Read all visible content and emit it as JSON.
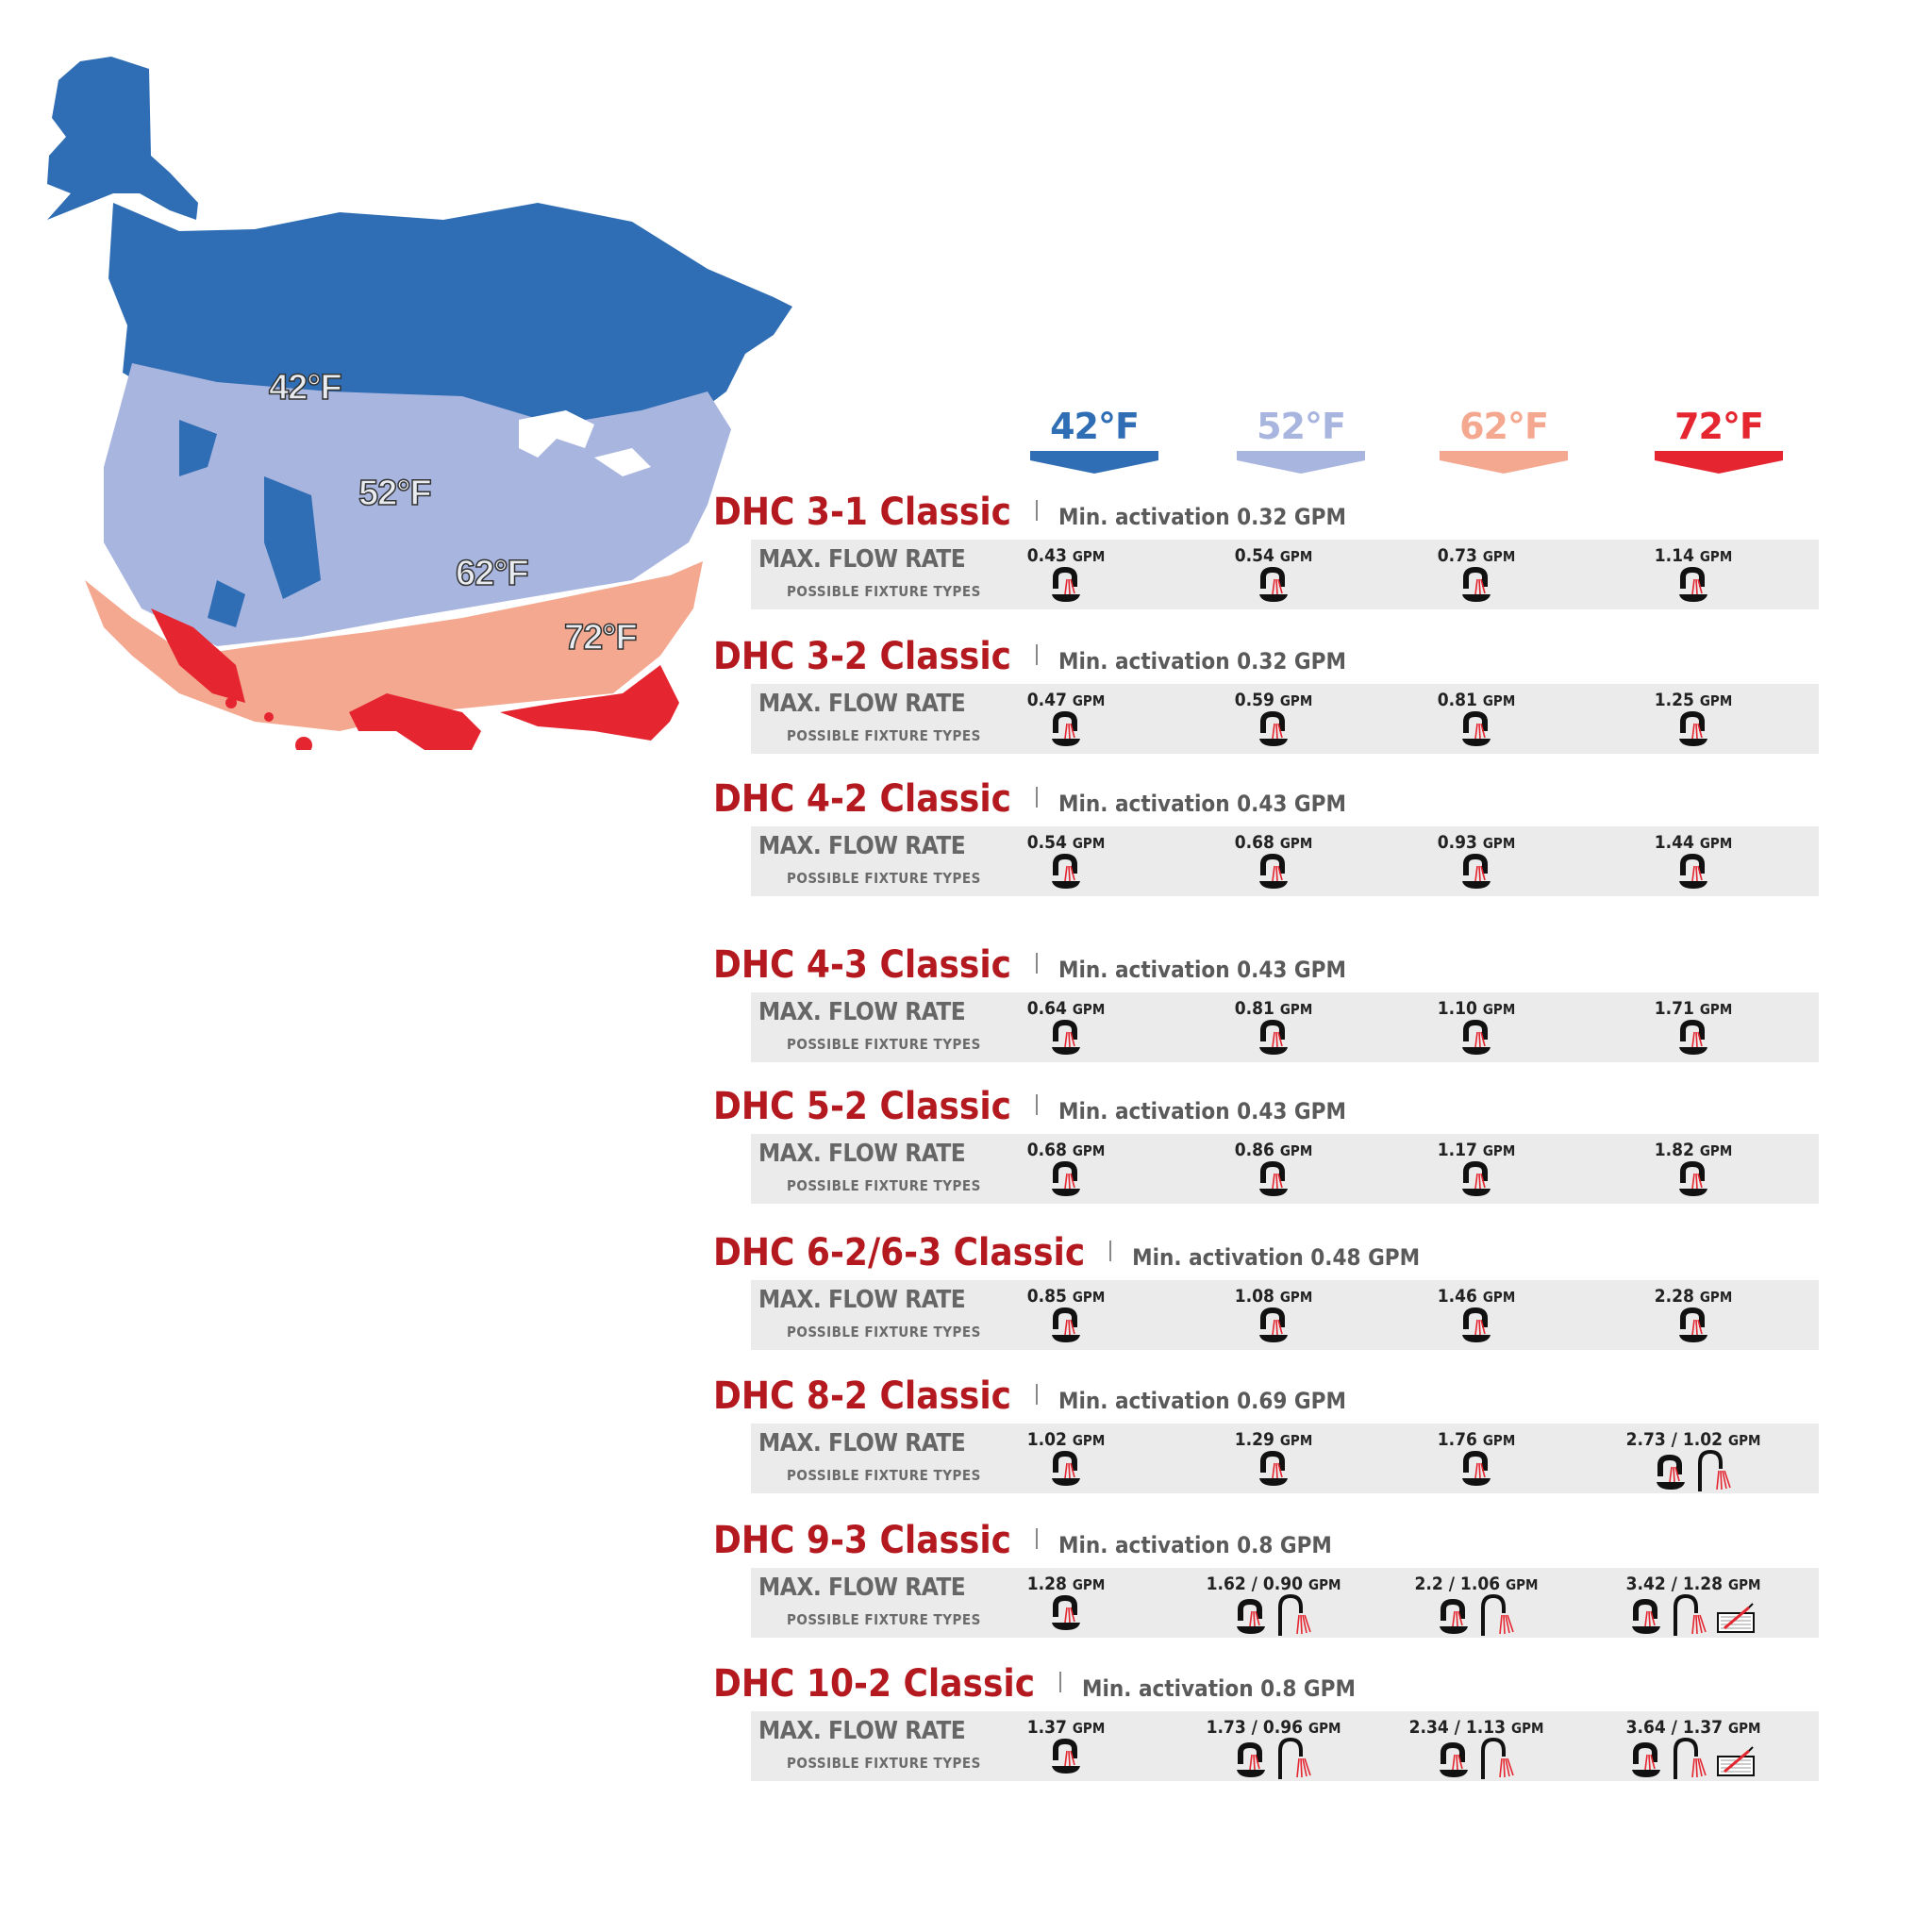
{
  "map": {
    "regions": [
      {
        "name": "42",
        "label": "42°F",
        "color": "#2f6db4"
      },
      {
        "name": "52",
        "label": "52°F",
        "color": "#a8b5df"
      },
      {
        "name": "62",
        "label": "62°F",
        "color": "#f4a88f"
      },
      {
        "name": "72",
        "label": "72°F",
        "color": "#e5252f"
      }
    ]
  },
  "temps": [
    {
      "label": "42°F",
      "color": "#2f6db4"
    },
    {
      "label": "52°F",
      "color": "#a8b5df"
    },
    {
      "label": "62°F",
      "color": "#f4a88f"
    },
    {
      "label": "72°F",
      "color": "#e5252f"
    }
  ],
  "labels": {
    "max_flow": "MAX. FLOW RATE",
    "fixture_types": "POSSIBLE FIXTURE TYPES"
  },
  "models": [
    {
      "name": "DHC 3-1 Classic",
      "activation": "Min. activation 0.32 GPM",
      "flows": [
        {
          "value": "0.43",
          "unit": "GPM",
          "icons": [
            "faucet-icon"
          ]
        },
        {
          "value": "0.54",
          "unit": "GPM",
          "icons": [
            "faucet-icon"
          ]
        },
        {
          "value": "0.73",
          "unit": "GPM",
          "icons": [
            "faucet-icon"
          ]
        },
        {
          "value": "1.14",
          "unit": "GPM",
          "icons": [
            "faucet-icon"
          ]
        }
      ]
    },
    {
      "name": "DHC 3-2 Classic",
      "activation": "Min. activation 0.32 GPM",
      "flows": [
        {
          "value": "0.47",
          "unit": "GPM",
          "icons": [
            "faucet-icon"
          ]
        },
        {
          "value": "0.59",
          "unit": "GPM",
          "icons": [
            "faucet-icon"
          ]
        },
        {
          "value": "0.81",
          "unit": "GPM",
          "icons": [
            "faucet-icon"
          ]
        },
        {
          "value": "1.25",
          "unit": "GPM",
          "icons": [
            "faucet-icon"
          ]
        }
      ]
    },
    {
      "name": "DHC 4-2 Classic",
      "activation": "Min. activation 0.43 GPM",
      "flows": [
        {
          "value": "0.54",
          "unit": "GPM",
          "icons": [
            "faucet-icon"
          ]
        },
        {
          "value": "0.68",
          "unit": "GPM",
          "icons": [
            "faucet-icon"
          ]
        },
        {
          "value": "0.93",
          "unit": "GPM",
          "icons": [
            "faucet-icon"
          ]
        },
        {
          "value": "1.44",
          "unit": "GPM",
          "icons": [
            "faucet-icon"
          ]
        }
      ]
    },
    {
      "name": "DHC 4-3 Classic",
      "activation": "Min. activation 0.43 GPM",
      "flows": [
        {
          "value": "0.64",
          "unit": "GPM",
          "icons": [
            "faucet-icon"
          ]
        },
        {
          "value": "0.81",
          "unit": "GPM",
          "icons": [
            "faucet-icon"
          ]
        },
        {
          "value": "1.10",
          "unit": "GPM",
          "icons": [
            "faucet-icon"
          ]
        },
        {
          "value": "1.71",
          "unit": "GPM",
          "icons": [
            "faucet-icon"
          ]
        }
      ]
    },
    {
      "name": "DHC 5-2 Classic",
      "activation": "Min. activation 0.43 GPM",
      "flows": [
        {
          "value": "0.68",
          "unit": "GPM",
          "icons": [
            "faucet-icon"
          ]
        },
        {
          "value": "0.86",
          "unit": "GPM",
          "icons": [
            "faucet-icon"
          ]
        },
        {
          "value": "1.17",
          "unit": "GPM",
          "icons": [
            "faucet-icon"
          ]
        },
        {
          "value": "1.82",
          "unit": "GPM",
          "icons": [
            "faucet-icon"
          ]
        }
      ]
    },
    {
      "name": "DHC 6-2/6-3 Classic",
      "activation": "Min. activation 0.48 GPM",
      "flows": [
        {
          "value": "0.85",
          "unit": "GPM",
          "icons": [
            "faucet-icon"
          ]
        },
        {
          "value": "1.08",
          "unit": "GPM",
          "icons": [
            "faucet-icon"
          ]
        },
        {
          "value": "1.46",
          "unit": "GPM",
          "icons": [
            "faucet-icon"
          ]
        },
        {
          "value": "2.28",
          "unit": "GPM",
          "icons": [
            "faucet-icon"
          ]
        }
      ]
    },
    {
      "name": "DHC 8-2 Classic",
      "activation": "Min. activation 0.69 GPM",
      "flows": [
        {
          "value": "1.02",
          "unit": "GPM",
          "icons": [
            "faucet-icon"
          ]
        },
        {
          "value": "1.29",
          "unit": "GPM",
          "icons": [
            "faucet-icon"
          ]
        },
        {
          "value": "1.76",
          "unit": "GPM",
          "icons": [
            "faucet-icon"
          ]
        },
        {
          "value": "2.73 / 1.02",
          "unit": "GPM",
          "icons": [
            "faucet-icon",
            "shower-icon"
          ]
        }
      ]
    },
    {
      "name": "DHC 9-3 Classic",
      "activation": "Min. activation 0.8 GPM",
      "flows": [
        {
          "value": "1.28",
          "unit": "GPM",
          "icons": [
            "faucet-icon"
          ]
        },
        {
          "value": "1.62 / 0.90",
          "unit": "GPM",
          "icons": [
            "faucet-icon",
            "shower-icon"
          ]
        },
        {
          "value": "2.2 / 1.06",
          "unit": "GPM",
          "icons": [
            "faucet-icon",
            "shower-icon"
          ]
        },
        {
          "value": "3.42 / 1.28",
          "unit": "GPM",
          "icons": [
            "faucet-icon",
            "shower-icon",
            "tub-icon"
          ]
        }
      ]
    },
    {
      "name": "DHC 10-2 Classic",
      "activation": "Min. activation 0.8 GPM",
      "flows": [
        {
          "value": "1.37",
          "unit": "GPM",
          "icons": [
            "faucet-icon"
          ]
        },
        {
          "value": "1.73 / 0.96",
          "unit": "GPM",
          "icons": [
            "faucet-icon",
            "shower-icon"
          ]
        },
        {
          "value": "2.34 / 1.13",
          "unit": "GPM",
          "icons": [
            "faucet-icon",
            "shower-icon"
          ]
        },
        {
          "value": "3.64 / 1.37",
          "unit": "GPM",
          "icons": [
            "faucet-icon",
            "shower-icon",
            "tub-icon"
          ]
        }
      ]
    }
  ]
}
